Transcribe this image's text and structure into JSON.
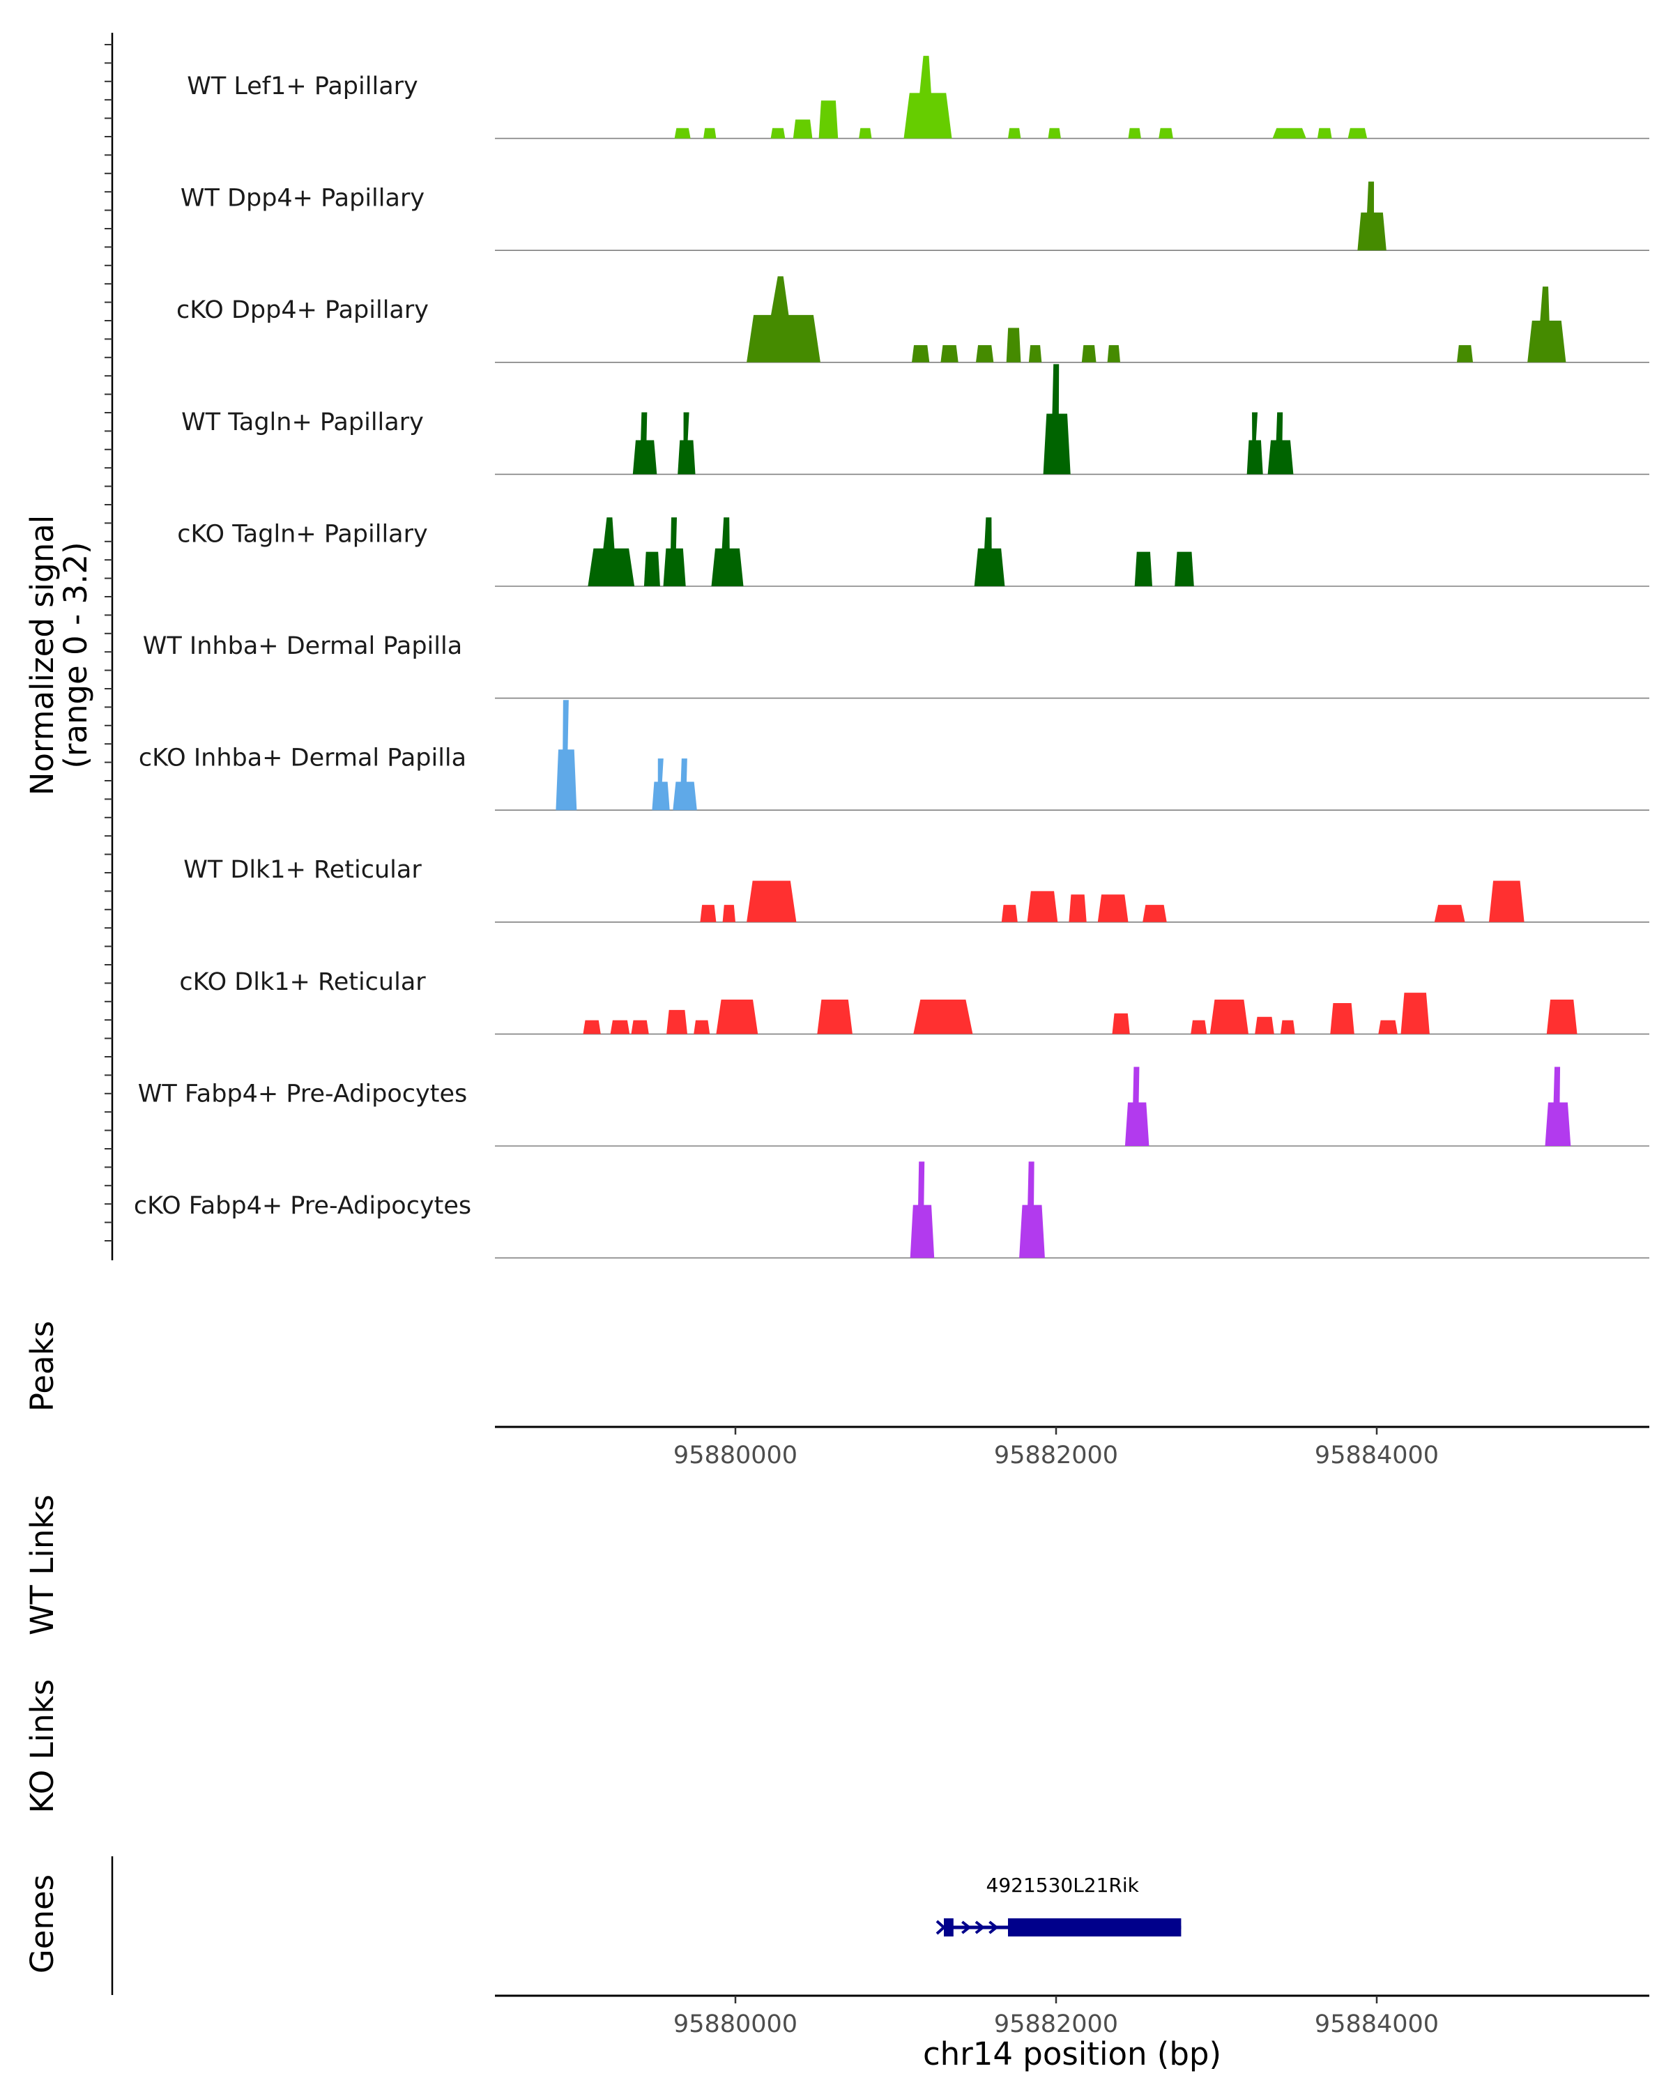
{
  "chart_data": {
    "type": "area",
    "title": "",
    "signal_axis_label": "Normalized signal",
    "signal_axis_range_label": "(range 0 - 3.2)",
    "signal_range": [
      0,
      3.2
    ],
    "x_range": [
      95878500,
      95885700
    ],
    "xlabel": "chr14 position (bp)",
    "x_ticks": [
      95880000,
      95882000,
      95884000
    ],
    "x_tick_labels": [
      "95880000",
      "95882000",
      "95884000"
    ],
    "panel_labels": {
      "peaks": "Peaks",
      "wt_links": "WT Links",
      "ko_links": "KO Links",
      "genes": "Genes"
    },
    "gene": {
      "name": "4921530L21Rik",
      "strand": "+",
      "color": "#00008b",
      "start": 95881300,
      "end": 95882780,
      "exons": [
        [
          95881300,
          95881360
        ],
        [
          95881700,
          95882780
        ]
      ]
    },
    "tracks": [
      {
        "label": "WT Lef1+ Papillary",
        "color": "#66cd00",
        "peaks": [
          {
            "s": 95879620,
            "e": 95879720,
            "v": 0.3
          },
          {
            "s": 95879800,
            "e": 95879880,
            "v": 0.3
          },
          {
            "s": 95880220,
            "e": 95880310,
            "v": 0.3
          },
          {
            "s": 95880360,
            "e": 95880480,
            "v": 0.55
          },
          {
            "s": 95880520,
            "e": 95880640,
            "v": 1.1
          },
          {
            "s": 95880770,
            "e": 95880850,
            "v": 0.3
          },
          {
            "s": 95881050,
            "e": 95881350,
            "v": 2.4
          },
          {
            "s": 95881700,
            "e": 95881780,
            "v": 0.3
          },
          {
            "s": 95881950,
            "e": 95882030,
            "v": 0.3
          },
          {
            "s": 95882450,
            "e": 95882530,
            "v": 0.3
          },
          {
            "s": 95882640,
            "e": 95882730,
            "v": 0.3
          },
          {
            "s": 95883350,
            "e": 95883560,
            "v": 0.3
          },
          {
            "s": 95883630,
            "e": 95883720,
            "v": 0.3
          },
          {
            "s": 95883820,
            "e": 95883940,
            "v": 0.3
          }
        ]
      },
      {
        "label": "WT Dpp4+ Papillary",
        "color": "#458b00",
        "peaks": [
          {
            "s": 95883880,
            "e": 95884060,
            "v": 2.0
          }
        ]
      },
      {
        "label": "cKO Dpp4+ Papillary",
        "color": "#458b00",
        "peaks": [
          {
            "s": 95880070,
            "e": 95880530,
            "v": 2.5
          },
          {
            "s": 95881100,
            "e": 95881210,
            "v": 0.5
          },
          {
            "s": 95881280,
            "e": 95881390,
            "v": 0.5
          },
          {
            "s": 95881500,
            "e": 95881610,
            "v": 0.5
          },
          {
            "s": 95881690,
            "e": 95881780,
            "v": 1.0
          },
          {
            "s": 95881830,
            "e": 95881910,
            "v": 0.5
          },
          {
            "s": 95882160,
            "e": 95882250,
            "v": 0.5
          },
          {
            "s": 95882320,
            "e": 95882400,
            "v": 0.5
          },
          {
            "s": 95884500,
            "e": 95884600,
            "v": 0.5
          },
          {
            "s": 95884940,
            "e": 95885180,
            "v": 2.2
          }
        ]
      },
      {
        "label": "WT Tagln+ Papillary",
        "color": "#006400",
        "peaks": [
          {
            "s": 95879360,
            "e": 95879510,
            "v": 1.8
          },
          {
            "s": 95879640,
            "e": 95879750,
            "v": 1.8
          },
          {
            "s": 95881920,
            "e": 95882090,
            "v": 3.2
          },
          {
            "s": 95883190,
            "e": 95883290,
            "v": 1.8
          },
          {
            "s": 95883320,
            "e": 95883480,
            "v": 1.8
          }
        ]
      },
      {
        "label": "cKO Tagln+ Papillary",
        "color": "#006400",
        "peaks": [
          {
            "s": 95879080,
            "e": 95879370,
            "v": 2.0
          },
          {
            "s": 95879430,
            "e": 95879530,
            "v": 1.0
          },
          {
            "s": 95879550,
            "e": 95879690,
            "v": 2.0
          },
          {
            "s": 95879850,
            "e": 95880050,
            "v": 2.0
          },
          {
            "s": 95881490,
            "e": 95881680,
            "v": 2.0
          },
          {
            "s": 95882490,
            "e": 95882600,
            "v": 1.0
          },
          {
            "s": 95882740,
            "e": 95882860,
            "v": 1.0
          }
        ]
      },
      {
        "label": "WT Inhba+ Dermal Papilla",
        "color": "#5fa9e8",
        "peaks": []
      },
      {
        "label": "cKO Inhba+ Dermal Papilla",
        "color": "#5fa9e8",
        "peaks": [
          {
            "s": 95878880,
            "e": 95879010,
            "v": 3.2
          },
          {
            "s": 95879480,
            "e": 95879590,
            "v": 1.5
          },
          {
            "s": 95879610,
            "e": 95879760,
            "v": 1.5
          }
        ]
      },
      {
        "label": "WT Dlk1+ Reticular",
        "color": "#ff3030",
        "peaks": [
          {
            "s": 95879780,
            "e": 95879880,
            "v": 0.5
          },
          {
            "s": 95879920,
            "e": 95880000,
            "v": 0.5
          },
          {
            "s": 95880070,
            "e": 95880380,
            "v": 1.2
          },
          {
            "s": 95881660,
            "e": 95881760,
            "v": 0.5
          },
          {
            "s": 95881820,
            "e": 95882010,
            "v": 0.9
          },
          {
            "s": 95882080,
            "e": 95882190,
            "v": 0.8
          },
          {
            "s": 95882260,
            "e": 95882450,
            "v": 0.8
          },
          {
            "s": 95882540,
            "e": 95882690,
            "v": 0.5
          },
          {
            "s": 95884360,
            "e": 95884550,
            "v": 0.5
          },
          {
            "s": 95884700,
            "e": 95884920,
            "v": 1.2
          }
        ]
      },
      {
        "label": "cKO Dlk1+ Reticular",
        "color": "#ff3030",
        "peaks": [
          {
            "s": 95879050,
            "e": 95879160,
            "v": 0.4
          },
          {
            "s": 95879220,
            "e": 95879340,
            "v": 0.4
          },
          {
            "s": 95879350,
            "e": 95879460,
            "v": 0.4
          },
          {
            "s": 95879570,
            "e": 95879700,
            "v": 0.7
          },
          {
            "s": 95879740,
            "e": 95879840,
            "v": 0.4
          },
          {
            "s": 95879880,
            "e": 95880140,
            "v": 1.0
          },
          {
            "s": 95880510,
            "e": 95880730,
            "v": 1.0
          },
          {
            "s": 95881110,
            "e": 95881480,
            "v": 1.0
          },
          {
            "s": 95882350,
            "e": 95882460,
            "v": 0.6
          },
          {
            "s": 95882840,
            "e": 95882940,
            "v": 0.4
          },
          {
            "s": 95882960,
            "e": 95883200,
            "v": 1.0
          },
          {
            "s": 95883240,
            "e": 95883360,
            "v": 0.5
          },
          {
            "s": 95883400,
            "e": 95883490,
            "v": 0.4
          },
          {
            "s": 95883710,
            "e": 95883860,
            "v": 0.9
          },
          {
            "s": 95884010,
            "e": 95884130,
            "v": 0.4
          },
          {
            "s": 95884150,
            "e": 95884330,
            "v": 1.2
          },
          {
            "s": 95885060,
            "e": 95885250,
            "v": 1.0
          }
        ]
      },
      {
        "label": "WT Fabp4+ Pre-Adipocytes",
        "color": "#b23aee",
        "peaks": [
          {
            "s": 95882430,
            "e": 95882580,
            "v": 2.3
          },
          {
            "s": 95885050,
            "e": 95885210,
            "v": 2.3
          }
        ]
      },
      {
        "label": "cKO Fabp4+ Pre-Adipocytes",
        "color": "#b23aee",
        "peaks": [
          {
            "s": 95881090,
            "e": 95881240,
            "v": 2.8
          },
          {
            "s": 95881770,
            "e": 95881930,
            "v": 2.8
          }
        ]
      }
    ]
  }
}
